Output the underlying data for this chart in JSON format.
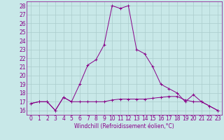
{
  "xlabel": "Windchill (Refroidissement éolien,°C)",
  "xlim": [
    -0.5,
    23.5
  ],
  "ylim": [
    15.5,
    28.5
  ],
  "yticks": [
    16,
    17,
    18,
    19,
    20,
    21,
    22,
    23,
    24,
    25,
    26,
    27,
    28
  ],
  "xticks": [
    0,
    1,
    2,
    3,
    4,
    5,
    6,
    7,
    8,
    9,
    10,
    11,
    12,
    13,
    14,
    15,
    16,
    17,
    18,
    19,
    20,
    21,
    22,
    23
  ],
  "line_color": "#880088",
  "bg_color": "#c8e8e8",
  "grid_color": "#aacccc",
  "series1_x": [
    0,
    1,
    2,
    3,
    4,
    5,
    6,
    7,
    8,
    9,
    10,
    11,
    12,
    13,
    14,
    15,
    16,
    17,
    18,
    19,
    20,
    21,
    22,
    23
  ],
  "series1_y": [
    16.8,
    17.0,
    17.0,
    16.0,
    17.5,
    17.0,
    17.0,
    17.0,
    17.0,
    17.0,
    17.2,
    17.3,
    17.3,
    17.3,
    17.3,
    17.4,
    17.5,
    17.6,
    17.6,
    17.2,
    17.0,
    17.0,
    16.5,
    16.0
  ],
  "series2_x": [
    0,
    1,
    2,
    3,
    4,
    5,
    6,
    7,
    8,
    9,
    10,
    11,
    12,
    13,
    14,
    15,
    16,
    17,
    18,
    19,
    20,
    21,
    22,
    23
  ],
  "series2_y": [
    16.8,
    17.0,
    17.0,
    16.0,
    17.5,
    17.0,
    19.0,
    21.2,
    21.8,
    23.5,
    28.0,
    27.7,
    28.0,
    23.0,
    22.5,
    21.0,
    19.0,
    18.5,
    18.0,
    17.0,
    17.8,
    17.0,
    16.5,
    16.0
  ],
  "tick_fontsize": 5.5,
  "xlabel_fontsize": 5.5
}
